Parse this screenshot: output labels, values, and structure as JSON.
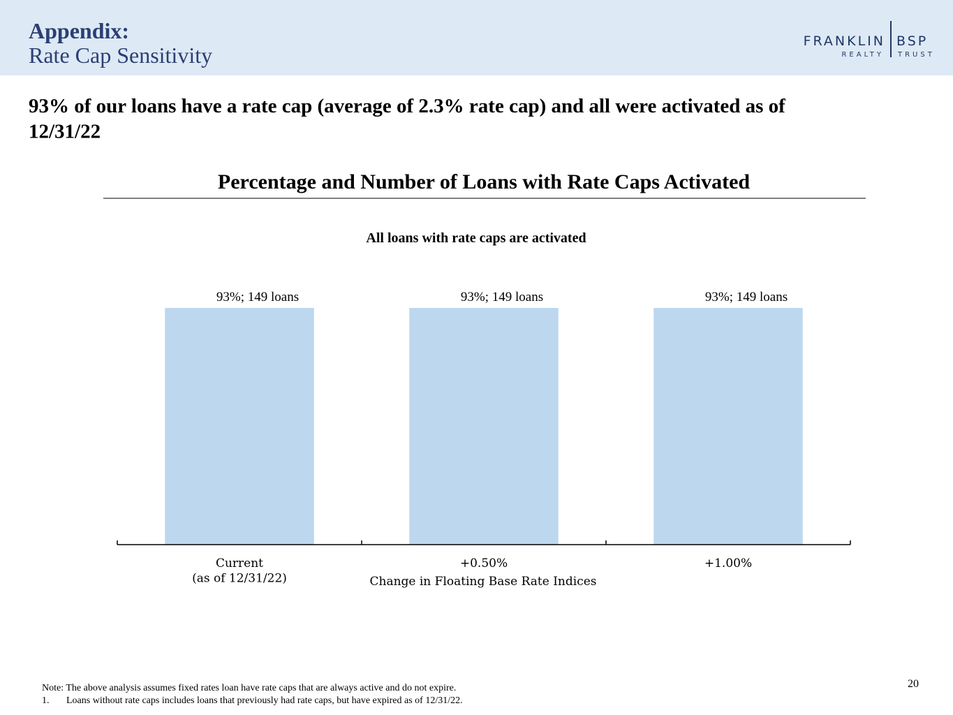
{
  "header": {
    "title": "Appendix:",
    "subtitle": "Rate Cap Sensitivity",
    "logo_left": "FRANKLIN",
    "logo_right": "BSP",
    "logo_sub_left": "REALTY",
    "logo_sub_right": "TRUST"
  },
  "headline": "93% of our loans have a rate cap (average of 2.3% rate cap) and all were activated as of 12/31/22",
  "chart_data": {
    "type": "bar",
    "title": "Percentage and Number of Loans with Rate Caps Activated",
    "subtitle": "All loans with rate caps are activated",
    "x_label": "Change in Floating Base Rate Indices",
    "categories": [
      "Current\n(as of 12/31/22)",
      "+0.50%",
      "+1.00%"
    ],
    "values": [
      93,
      93,
      93
    ],
    "value_labels": [
      "93%;  149 loans",
      "93%;  149 loans",
      "93%;  149 loans"
    ],
    "color": "#bdd7ee",
    "ylim": [
      0,
      100
    ]
  },
  "footnotes": {
    "note": "Note: The above analysis assumes fixed rates loan have rate caps that are always active and do not expire.",
    "item_number": "1.",
    "item": "Loans without rate caps includes loans that previously had rate caps, but have expired as of 12/31/22."
  },
  "page_number": "20"
}
